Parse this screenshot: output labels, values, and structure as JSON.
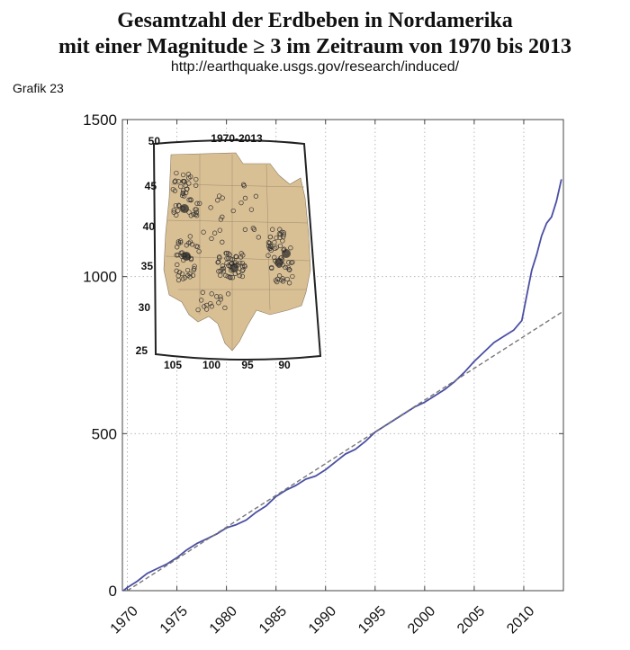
{
  "header": {
    "title_line1": "Gesamtzahl der Erdbeben in Nordamerika",
    "title_line2": "mit einer Magnitude ≥ 3 im Zeitraum von 1970 bis 2013",
    "source_url": "http://earthquake.usgs.gov/research/induced/",
    "figure_label": "Grafik 23"
  },
  "inset_map": {
    "title": "1970-2013",
    "lat_labels": [
      "50",
      "45",
      "40",
      "35",
      "30",
      "25"
    ],
    "lon_labels": [
      "105",
      "100",
      "95",
      "90"
    ],
    "land_color": "#d9bf94"
  },
  "chart_data": {
    "type": "line",
    "title": "",
    "xlabel": "",
    "ylabel": "",
    "xlim": [
      1969.5,
      2014
    ],
    "ylim": [
      0,
      1500
    ],
    "x_ticks": [
      1970,
      1975,
      1980,
      1985,
      1990,
      1995,
      2000,
      2005,
      2010
    ],
    "y_ticks": [
      0,
      500,
      1000,
      1500
    ],
    "grid": true,
    "series": [
      {
        "style": "solid",
        "color": "#4a4fa3",
        "x": [
          1969.6,
          1970,
          1971,
          1972,
          1973,
          1974,
          1975,
          1976,
          1977,
          1978,
          1979,
          1980,
          1981,
          1982,
          1983,
          1984,
          1985,
          1986,
          1987,
          1988,
          1989,
          1990,
          1991,
          1992,
          1993,
          1994,
          1995,
          1996,
          1997,
          1998,
          1999,
          2000,
          2001,
          2002,
          2003,
          2004,
          2005,
          2006,
          2007,
          2008,
          2009,
          2009.8,
          2010.3,
          2010.8,
          2011.3,
          2011.8,
          2012.3,
          2012.8,
          2013.3,
          2013.8
        ],
        "y": [
          0,
          10,
          30,
          55,
          70,
          85,
          105,
          130,
          150,
          165,
          180,
          200,
          210,
          225,
          250,
          270,
          300,
          320,
          335,
          355,
          365,
          385,
          410,
          435,
          450,
          475,
          505,
          525,
          545,
          565,
          585,
          600,
          620,
          640,
          665,
          695,
          730,
          760,
          790,
          810,
          830,
          860,
          940,
          1020,
          1070,
          1130,
          1170,
          1190,
          1240,
          1310
        ]
      },
      {
        "style": "dashed",
        "color": "#777777",
        "x": [
          1970,
          2014
        ],
        "y": [
          0,
          890
        ]
      }
    ]
  }
}
